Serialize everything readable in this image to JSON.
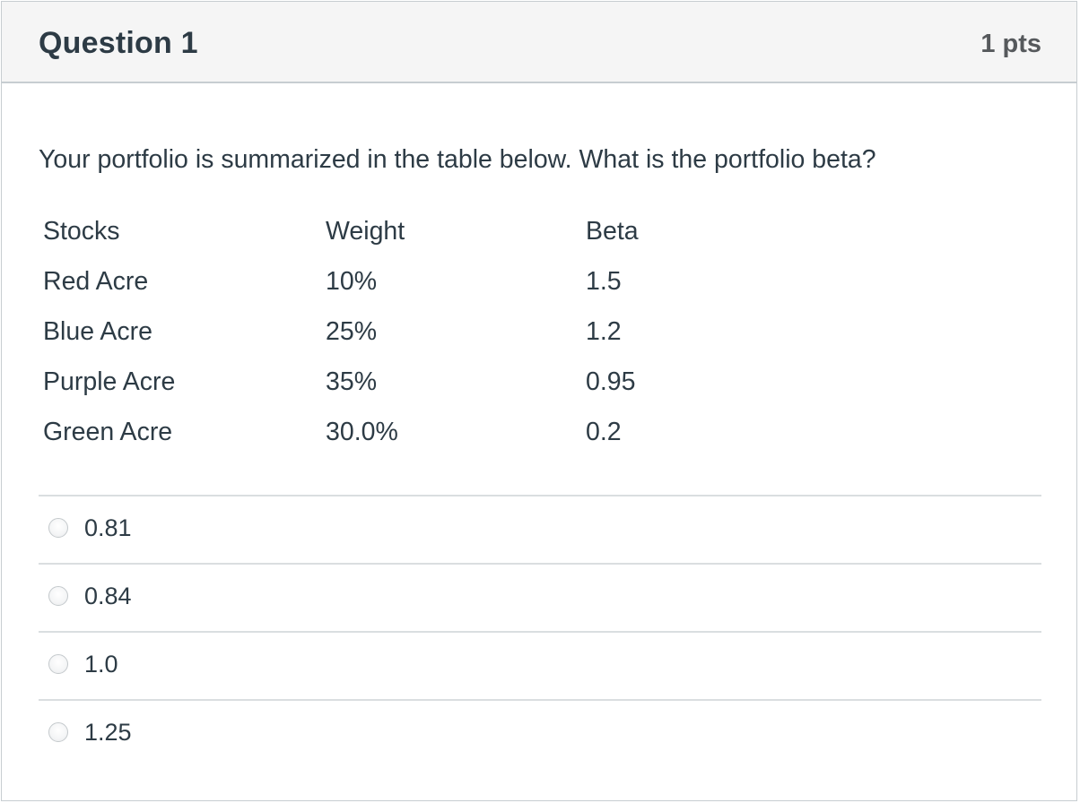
{
  "question": {
    "title": "Question 1",
    "points": "1 pts",
    "text": "Your portfolio is summarized in the table below. What is the portfolio beta?"
  },
  "table": {
    "headers": [
      "Stocks",
      "Weight",
      "Beta"
    ],
    "rows": [
      [
        "Red Acre",
        "10%",
        "1.5"
      ],
      [
        "Blue Acre",
        "25%",
        "1.2"
      ],
      [
        "Purple Acre",
        "35%",
        "0.95"
      ],
      [
        "Green Acre",
        "30.0%",
        "0.2"
      ]
    ]
  },
  "answers": [
    {
      "label": "0.81",
      "selected": false
    },
    {
      "label": "0.84",
      "selected": false
    },
    {
      "label": "1.0",
      "selected": false
    },
    {
      "label": "1.25",
      "selected": false
    }
  ]
}
